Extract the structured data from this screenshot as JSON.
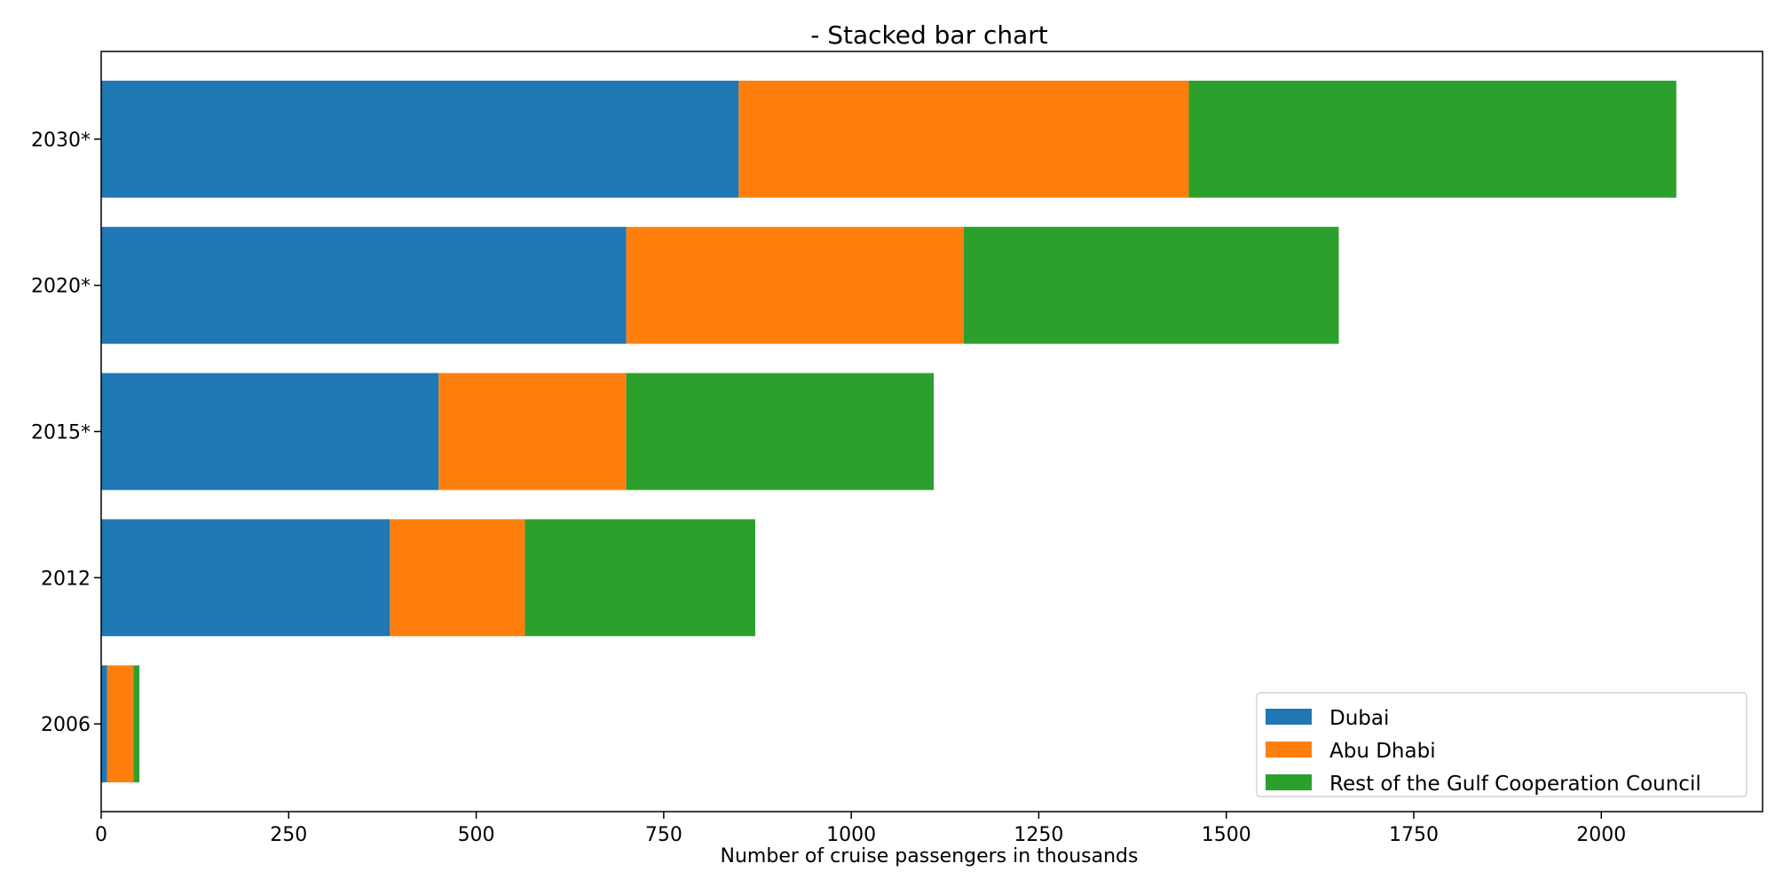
{
  "chart_data": {
    "type": "bar",
    "orientation": "horizontal",
    "stacked": true,
    "title": "- Stacked bar chart",
    "xlabel": "Number of cruise passengers in thousands",
    "ylabel": "",
    "xlim": [
      0,
      2215
    ],
    "xticks": [
      0,
      250,
      500,
      750,
      1000,
      1250,
      1500,
      1750,
      2000
    ],
    "categories": [
      "2006",
      "2012",
      "2015*",
      "2020*",
      "2030*"
    ],
    "series": [
      {
        "name": "Dubai",
        "color": "#1f77b4",
        "values": [
          8,
          385,
          450,
          700,
          850
        ]
      },
      {
        "name": "Abu Dhabi",
        "color": "#ff7f0e",
        "values": [
          35,
          180,
          250,
          450,
          600
        ]
      },
      {
        "name": "Rest of the Gulf Cooperation Council",
        "color": "#2ca02c",
        "values": [
          8,
          307,
          410,
          500,
          650
        ]
      }
    ],
    "legend_position": "lower-right",
    "grid": false
  }
}
